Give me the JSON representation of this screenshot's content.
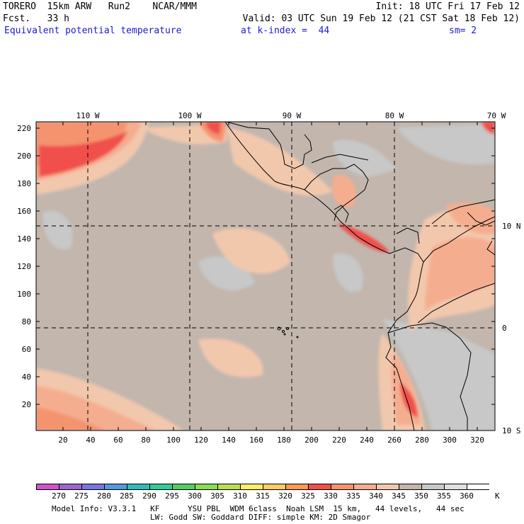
{
  "header": {
    "line1_left": "TORERO  15km ARW   Run2    NCAR/MMM",
    "line1_right": "Init: 18 UTC Fri 17 Feb 12",
    "line2_left": "Fcst.   33 h",
    "line2_right": "Valid: 03 UTC Sun 19 Feb 12 (21 CST Sat 18 Feb 12)",
    "field_name": "Equivalent potential temperature",
    "level": "at k-index =  44",
    "smoothing": "sm= 2"
  },
  "map": {
    "top_lon_labels": [
      "110 W",
      "100 W",
      "90 W",
      "80 W",
      "70 W"
    ],
    "right_lat_labels": [
      "10 N",
      "0",
      "10 S"
    ],
    "y_grid_labels": [
      "220",
      "200",
      "180",
      "160",
      "140",
      "120",
      "100",
      "80",
      "60",
      "40",
      "20"
    ],
    "x_grid_labels": [
      "20",
      "40",
      "60",
      "80",
      "100",
      "120",
      "140",
      "160",
      "180",
      "200",
      "220",
      "240",
      "260",
      "280",
      "300",
      "320"
    ],
    "colors": {
      "background": "#c2b6ad",
      "cool": "#c8c8c8",
      "warm_light": "#f2c8ad",
      "warm_mid": "#f5ad8f",
      "warm_orange": "#f5936e",
      "warm_red": "#f0504b",
      "coast": "#000000"
    }
  },
  "colorbar": {
    "unit": "K",
    "levels": [
      "270",
      "275",
      "280",
      "285",
      "290",
      "295",
      "300",
      "305",
      "310",
      "315",
      "320",
      "325",
      "330",
      "335",
      "340",
      "345",
      "350",
      "355",
      "360"
    ],
    "colors": [
      "#cc55cc",
      "#9a66cc",
      "#7777dd",
      "#5599dd",
      "#33bbbb",
      "#33cc99",
      "#55cc66",
      "#88dd55",
      "#bbdd55",
      "#ffee66",
      "#ffcc66",
      "#ff9955",
      "#f0504b",
      "#f5936e",
      "#f5ad8f",
      "#f2c8ad",
      "#c2b6ad",
      "#c8c8c8",
      "#e0e0e0",
      "#ffffff"
    ]
  },
  "footer": {
    "line1": "Model Info: V3.3.1   KF      YSU PBL  WDM 6class  Noah LSM  15 km,   44 levels,   44 sec",
    "line2": "LW: Godd SW: Goddard DIFF: simple KM: 2D Smagor"
  }
}
